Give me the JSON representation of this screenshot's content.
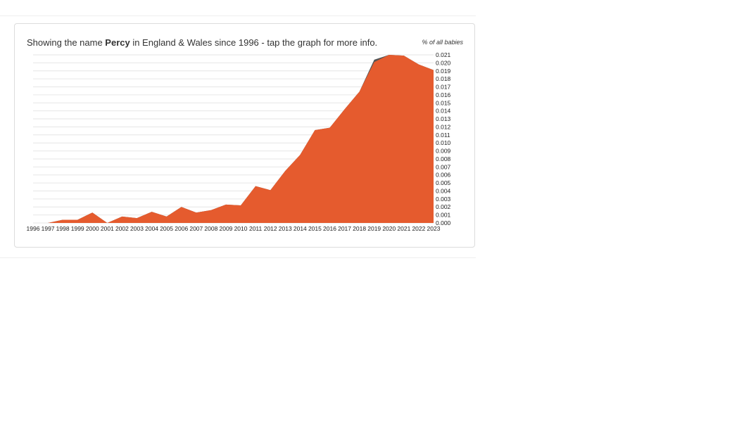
{
  "headline": {
    "prefix": "Showing the name ",
    "name": "Percy",
    "suffix": " in England & Wales since 1996 - tap the graph for more info."
  },
  "chart_data": {
    "type": "area",
    "ylabel": "% of all babies",
    "x": [
      "1996",
      "1997",
      "1998",
      "1999",
      "2000",
      "2001",
      "2002",
      "2003",
      "2004",
      "2005",
      "2006",
      "2007",
      "2008",
      "2009",
      "2010",
      "2011",
      "2012",
      "2013",
      "2014",
      "2015",
      "2016",
      "2017",
      "2018",
      "2019",
      "2020",
      "2021",
      "2022",
      "2023"
    ],
    "ylim": [
      0,
      0.021
    ],
    "yticks": [
      "0.000",
      "0.001",
      "0.002",
      "0.003",
      "0.004",
      "0.005",
      "0.006",
      "0.007",
      "0.008",
      "0.009",
      "0.010",
      "0.011",
      "0.012",
      "0.013",
      "0.014",
      "0.015",
      "0.016",
      "0.017",
      "0.018",
      "0.019",
      "0.020",
      "0.021"
    ],
    "grid": true,
    "series": [
      {
        "color": "#e55b2e",
        "values": [
          0.0,
          0.0,
          0.0004,
          0.0004,
          0.0013,
          0.0,
          0.0008,
          0.0006,
          0.0014,
          0.0008,
          0.002,
          0.0013,
          0.0016,
          0.0023,
          0.0022,
          0.0046,
          0.0041,
          0.0065,
          0.0085,
          0.0116,
          0.0119,
          0.0142,
          0.0164,
          0.0201,
          0.021,
          0.0209,
          0.0198,
          0.0191
        ]
      },
      {
        "color": "#555555",
        "values": [
          0.0,
          0.0,
          0.0004,
          0.0004,
          0.0013,
          0.0,
          0.0008,
          0.0006,
          0.0014,
          0.0008,
          0.002,
          0.0013,
          0.0016,
          0.0023,
          0.0022,
          0.0046,
          0.0041,
          0.0065,
          0.0085,
          0.0116,
          0.0119,
          0.0142,
          0.0164,
          0.0204,
          0.021,
          0.0209,
          0.0198,
          0.0191
        ]
      }
    ]
  }
}
